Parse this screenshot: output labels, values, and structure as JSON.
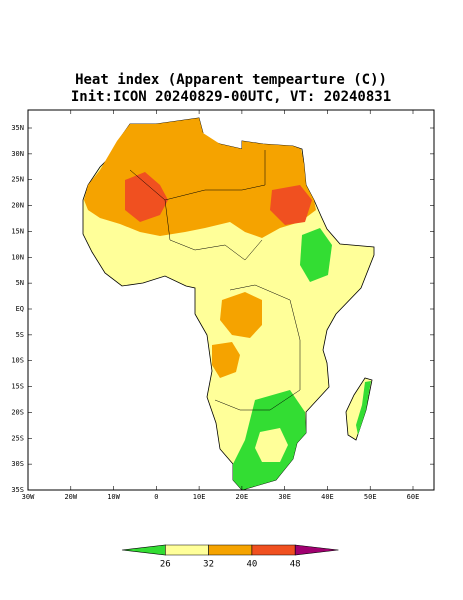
{
  "title": "Heat index (Apparent tempearture (C))",
  "subtitle": "Init:ICON 20240829-00UTC, VT: 20240831",
  "lat_labels": [
    "35N",
    "30N",
    "25N",
    "20N",
    "15N",
    "10N",
    "5N",
    "EQ",
    "5S",
    "10S",
    "15S",
    "20S",
    "25S",
    "30S",
    "35S"
  ],
  "lon_labels": [
    "30W",
    "20W",
    "10W",
    "0",
    "10E",
    "20E",
    "30E",
    "40E",
    "50E",
    "60E"
  ],
  "colorbar": {
    "labels": [
      "26",
      "32",
      "40",
      "48"
    ],
    "colors": [
      "#33dd33",
      "#ffff99",
      "#f5a300",
      "#f05020",
      "#a00070"
    ]
  }
}
